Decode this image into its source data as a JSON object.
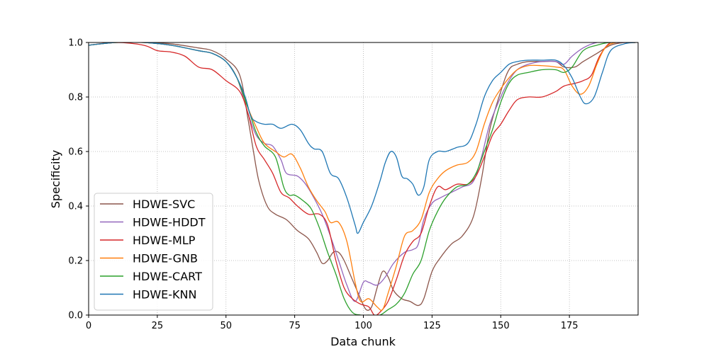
{
  "chart_data": {
    "type": "line",
    "title": "",
    "xlabel": "Data chunk",
    "ylabel": "Specificity",
    "xlim": [
      0,
      200
    ],
    "ylim": [
      0.0,
      1.0
    ],
    "xticks": [
      0,
      25,
      50,
      75,
      100,
      125,
      150,
      175
    ],
    "yticks": [
      0.0,
      0.2,
      0.4,
      0.6,
      0.8,
      1.0
    ],
    "xtick_labels": [
      "0",
      "25",
      "50",
      "75",
      "100",
      "125",
      "150",
      "175"
    ],
    "ytick_labels": [
      "0.0",
      "0.2",
      "0.4",
      "0.6",
      "0.8",
      "1.0"
    ],
    "grid": true,
    "legend_position": "lower-left",
    "series": [
      {
        "name": "HDWE-SVC",
        "color": "#8c564b",
        "points": [
          [
            0,
            0.99
          ],
          [
            10,
            1.0
          ],
          [
            20,
            1.0
          ],
          [
            30,
            0.995
          ],
          [
            40,
            0.98
          ],
          [
            45,
            0.97
          ],
          [
            50,
            0.94
          ],
          [
            55,
            0.88
          ],
          [
            58,
            0.72
          ],
          [
            60,
            0.6
          ],
          [
            62,
            0.49
          ],
          [
            65,
            0.4
          ],
          [
            68,
            0.37
          ],
          [
            72,
            0.35
          ],
          [
            76,
            0.31
          ],
          [
            80,
            0.28
          ],
          [
            83,
            0.23
          ],
          [
            85,
            0.19
          ],
          [
            87,
            0.2
          ],
          [
            89,
            0.23
          ],
          [
            91,
            0.23
          ],
          [
            93,
            0.2
          ],
          [
            96,
            0.13
          ],
          [
            99,
            0.06
          ],
          [
            101,
            0.02
          ],
          [
            103,
            0.03
          ],
          [
            105,
            0.1
          ],
          [
            107,
            0.16
          ],
          [
            109,
            0.14
          ],
          [
            111,
            0.09
          ],
          [
            114,
            0.06
          ],
          [
            117,
            0.05
          ],
          [
            120,
            0.035
          ],
          [
            122,
            0.06
          ],
          [
            125,
            0.16
          ],
          [
            128,
            0.21
          ],
          [
            132,
            0.26
          ],
          [
            136,
            0.29
          ],
          [
            140,
            0.36
          ],
          [
            143,
            0.5
          ],
          [
            146,
            0.68
          ],
          [
            150,
            0.82
          ],
          [
            153,
            0.9
          ],
          [
            156,
            0.92
          ],
          [
            160,
            0.93
          ],
          [
            165,
            0.93
          ],
          [
            170,
            0.93
          ],
          [
            173,
            0.91
          ],
          [
            177,
            0.91
          ],
          [
            180,
            0.93
          ],
          [
            185,
            0.96
          ],
          [
            190,
            0.99
          ],
          [
            195,
            1.0
          ],
          [
            199,
            1.0
          ]
        ]
      },
      {
        "name": "HDWE-HDDT",
        "color": "#9467bd",
        "points": [
          [
            0,
            0.99
          ],
          [
            10,
            1.0
          ],
          [
            20,
            1.0
          ],
          [
            30,
            0.99
          ],
          [
            40,
            0.97
          ],
          [
            45,
            0.96
          ],
          [
            50,
            0.93
          ],
          [
            54,
            0.87
          ],
          [
            58,
            0.74
          ],
          [
            61,
            0.66
          ],
          [
            64,
            0.63
          ],
          [
            67,
            0.62
          ],
          [
            70,
            0.57
          ],
          [
            72,
            0.52
          ],
          [
            76,
            0.51
          ],
          [
            79,
            0.48
          ],
          [
            82,
            0.43
          ],
          [
            85,
            0.37
          ],
          [
            88,
            0.29
          ],
          [
            91,
            0.2
          ],
          [
            94,
            0.11
          ],
          [
            97,
            0.05
          ],
          [
            100,
            0.12
          ],
          [
            102,
            0.12
          ],
          [
            105,
            0.11
          ],
          [
            108,
            0.14
          ],
          [
            111,
            0.19
          ],
          [
            115,
            0.23
          ],
          [
            118,
            0.24
          ],
          [
            120,
            0.26
          ],
          [
            122,
            0.35
          ],
          [
            125,
            0.41
          ],
          [
            128,
            0.43
          ],
          [
            132,
            0.45
          ],
          [
            136,
            0.47
          ],
          [
            140,
            0.49
          ],
          [
            143,
            0.58
          ],
          [
            146,
            0.7
          ],
          [
            150,
            0.8
          ],
          [
            153,
            0.86
          ],
          [
            156,
            0.9
          ],
          [
            160,
            0.92
          ],
          [
            165,
            0.93
          ],
          [
            170,
            0.93
          ],
          [
            173,
            0.92
          ],
          [
            176,
            0.95
          ],
          [
            180,
            0.98
          ],
          [
            185,
            1.0
          ],
          [
            190,
            1.0
          ],
          [
            195,
            1.0
          ],
          [
            199,
            1.0
          ]
        ]
      },
      {
        "name": "HDWE-MLP",
        "color": "#d62728",
        "points": [
          [
            0,
            0.99
          ],
          [
            10,
            1.0
          ],
          [
            20,
            0.99
          ],
          [
            25,
            0.97
          ],
          [
            30,
            0.965
          ],
          [
            35,
            0.95
          ],
          [
            40,
            0.91
          ],
          [
            45,
            0.9
          ],
          [
            50,
            0.86
          ],
          [
            55,
            0.82
          ],
          [
            58,
            0.74
          ],
          [
            61,
            0.62
          ],
          [
            64,
            0.57
          ],
          [
            67,
            0.52
          ],
          [
            70,
            0.45
          ],
          [
            73,
            0.43
          ],
          [
            76,
            0.4
          ],
          [
            80,
            0.37
          ],
          [
            84,
            0.37
          ],
          [
            87,
            0.33
          ],
          [
            90,
            0.2
          ],
          [
            93,
            0.1
          ],
          [
            96,
            0.06
          ],
          [
            99,
            0.04
          ],
          [
            102,
            0.03
          ],
          [
            104,
            0.0
          ],
          [
            106,
            0.01
          ],
          [
            109,
            0.05
          ],
          [
            112,
            0.13
          ],
          [
            115,
            0.22
          ],
          [
            118,
            0.27
          ],
          [
            121,
            0.3
          ],
          [
            124,
            0.4
          ],
          [
            127,
            0.47
          ],
          [
            130,
            0.46
          ],
          [
            134,
            0.48
          ],
          [
            138,
            0.48
          ],
          [
            141,
            0.51
          ],
          [
            144,
            0.58
          ],
          [
            147,
            0.66
          ],
          [
            150,
            0.7
          ],
          [
            153,
            0.75
          ],
          [
            156,
            0.79
          ],
          [
            160,
            0.8
          ],
          [
            165,
            0.8
          ],
          [
            170,
            0.82
          ],
          [
            173,
            0.84
          ],
          [
            177,
            0.85
          ],
          [
            180,
            0.86
          ],
          [
            183,
            0.88
          ],
          [
            186,
            0.95
          ],
          [
            190,
            1.0
          ],
          [
            195,
            1.0
          ],
          [
            199,
            1.0
          ]
        ]
      },
      {
        "name": "HDWE-GNB",
        "color": "#ff7f0e",
        "points": [
          [
            0,
            0.99
          ],
          [
            10,
            1.0
          ],
          [
            20,
            1.0
          ],
          [
            30,
            0.99
          ],
          [
            40,
            0.97
          ],
          [
            45,
            0.96
          ],
          [
            50,
            0.93
          ],
          [
            54,
            0.87
          ],
          [
            58,
            0.76
          ],
          [
            61,
            0.69
          ],
          [
            64,
            0.63
          ],
          [
            68,
            0.6
          ],
          [
            71,
            0.58
          ],
          [
            74,
            0.59
          ],
          [
            77,
            0.54
          ],
          [
            80,
            0.47
          ],
          [
            83,
            0.42
          ],
          [
            86,
            0.38
          ],
          [
            88,
            0.34
          ],
          [
            91,
            0.34
          ],
          [
            94,
            0.27
          ],
          [
            97,
            0.12
          ],
          [
            99,
            0.05
          ],
          [
            102,
            0.06
          ],
          [
            105,
            0.03
          ],
          [
            107,
            0.02
          ],
          [
            109,
            0.08
          ],
          [
            112,
            0.18
          ],
          [
            115,
            0.29
          ],
          [
            118,
            0.31
          ],
          [
            121,
            0.35
          ],
          [
            124,
            0.45
          ],
          [
            127,
            0.5
          ],
          [
            130,
            0.53
          ],
          [
            134,
            0.55
          ],
          [
            138,
            0.56
          ],
          [
            141,
            0.6
          ],
          [
            144,
            0.7
          ],
          [
            147,
            0.78
          ],
          [
            150,
            0.83
          ],
          [
            153,
            0.87
          ],
          [
            156,
            0.9
          ],
          [
            160,
            0.915
          ],
          [
            165,
            0.915
          ],
          [
            170,
            0.91
          ],
          [
            173,
            0.9
          ],
          [
            176,
            0.84
          ],
          [
            179,
            0.81
          ],
          [
            182,
            0.84
          ],
          [
            185,
            0.92
          ],
          [
            188,
            0.98
          ],
          [
            192,
            1.0
          ],
          [
            199,
            1.0
          ]
        ]
      },
      {
        "name": "HDWE-CART",
        "color": "#2ca02c",
        "points": [
          [
            0,
            0.99
          ],
          [
            10,
            1.0
          ],
          [
            20,
            1.0
          ],
          [
            30,
            0.99
          ],
          [
            40,
            0.97
          ],
          [
            45,
            0.96
          ],
          [
            50,
            0.93
          ],
          [
            54,
            0.87
          ],
          [
            58,
            0.76
          ],
          [
            61,
            0.67
          ],
          [
            64,
            0.62
          ],
          [
            68,
            0.58
          ],
          [
            71,
            0.47
          ],
          [
            73,
            0.44
          ],
          [
            75,
            0.44
          ],
          [
            78,
            0.42
          ],
          [
            81,
            0.39
          ],
          [
            84,
            0.32
          ],
          [
            87,
            0.23
          ],
          [
            90,
            0.15
          ],
          [
            93,
            0.06
          ],
          [
            96,
            0.01
          ],
          [
            99,
            0.0
          ],
          [
            102,
            0.0
          ],
          [
            106,
            0.0
          ],
          [
            109,
            0.02
          ],
          [
            112,
            0.04
          ],
          [
            115,
            0.08
          ],
          [
            118,
            0.15
          ],
          [
            121,
            0.2
          ],
          [
            124,
            0.31
          ],
          [
            127,
            0.38
          ],
          [
            130,
            0.43
          ],
          [
            134,
            0.47
          ],
          [
            138,
            0.48
          ],
          [
            141,
            0.52
          ],
          [
            144,
            0.6
          ],
          [
            147,
            0.68
          ],
          [
            150,
            0.78
          ],
          [
            153,
            0.85
          ],
          [
            156,
            0.88
          ],
          [
            160,
            0.89
          ],
          [
            165,
            0.9
          ],
          [
            170,
            0.9
          ],
          [
            173,
            0.89
          ],
          [
            176,
            0.91
          ],
          [
            180,
            0.97
          ],
          [
            185,
            0.99
          ],
          [
            190,
            1.0
          ],
          [
            199,
            1.0
          ]
        ]
      },
      {
        "name": "HDWE-KNN",
        "color": "#1f77b4",
        "points": [
          [
            0,
            0.99
          ],
          [
            10,
            1.0
          ],
          [
            20,
            1.0
          ],
          [
            30,
            0.99
          ],
          [
            40,
            0.97
          ],
          [
            45,
            0.96
          ],
          [
            50,
            0.93
          ],
          [
            54,
            0.87
          ],
          [
            57,
            0.8
          ],
          [
            59,
            0.73
          ],
          [
            61,
            0.71
          ],
          [
            64,
            0.7
          ],
          [
            67,
            0.7
          ],
          [
            70,
            0.685
          ],
          [
            74,
            0.7
          ],
          [
            77,
            0.68
          ],
          [
            80,
            0.63
          ],
          [
            82,
            0.61
          ],
          [
            85,
            0.6
          ],
          [
            88,
            0.52
          ],
          [
            91,
            0.5
          ],
          [
            94,
            0.43
          ],
          [
            97,
            0.33
          ],
          [
            98,
            0.3
          ],
          [
            100,
            0.34
          ],
          [
            103,
            0.4
          ],
          [
            106,
            0.49
          ],
          [
            108,
            0.56
          ],
          [
            110,
            0.6
          ],
          [
            112,
            0.58
          ],
          [
            114,
            0.51
          ],
          [
            116,
            0.5
          ],
          [
            118,
            0.48
          ],
          [
            120,
            0.44
          ],
          [
            122,
            0.47
          ],
          [
            124,
            0.57
          ],
          [
            127,
            0.6
          ],
          [
            130,
            0.6
          ],
          [
            134,
            0.615
          ],
          [
            138,
            0.63
          ],
          [
            141,
            0.7
          ],
          [
            144,
            0.8
          ],
          [
            147,
            0.86
          ],
          [
            150,
            0.89
          ],
          [
            153,
            0.92
          ],
          [
            156,
            0.93
          ],
          [
            160,
            0.935
          ],
          [
            165,
            0.935
          ],
          [
            170,
            0.935
          ],
          [
            173,
            0.915
          ],
          [
            176,
            0.87
          ],
          [
            179,
            0.8
          ],
          [
            181,
            0.775
          ],
          [
            184,
            0.8
          ],
          [
            187,
            0.89
          ],
          [
            190,
            0.97
          ],
          [
            195,
            0.995
          ],
          [
            199,
            1.0
          ]
        ]
      }
    ]
  }
}
